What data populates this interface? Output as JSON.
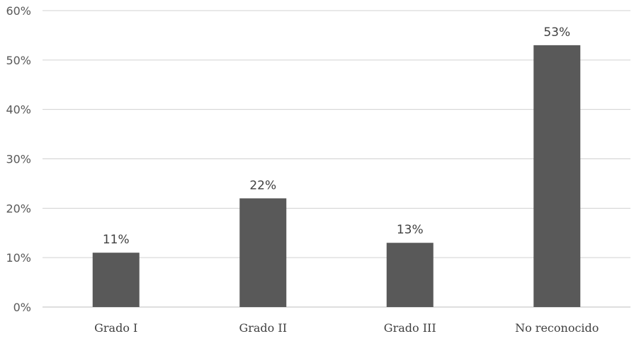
{
  "chart_data": {
    "type": "bar",
    "categories": [
      "Grado I",
      "Grado II",
      "Grado III",
      "No reconocido"
    ],
    "values": [
      11,
      22,
      13,
      53
    ],
    "data_labels": [
      "11%",
      "22%",
      "13%",
      "53%"
    ],
    "y_ticks": [
      0,
      10,
      20,
      30,
      40,
      50,
      60
    ],
    "y_tick_labels": [
      "0%",
      "10%",
      "20%",
      "30%",
      "40%",
      "50%",
      "60%"
    ],
    "ylim": [
      0,
      60
    ],
    "grid": true,
    "legend": "none",
    "bar_color": "#595959",
    "grid_color": "#d0d0d0"
  }
}
